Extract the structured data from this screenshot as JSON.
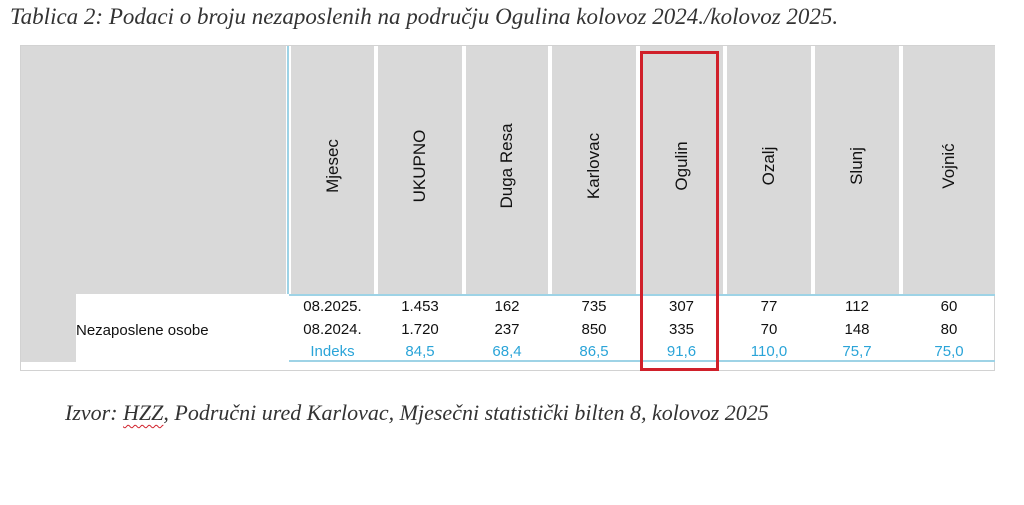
{
  "caption": "Tablica 2: Podaci o broju nezaposlenih na području Ogulina kolovoz 2024./kolovoz 2025.",
  "table": {
    "headers": [
      "Mjesec",
      "UKUPNO",
      "Duga Resa",
      "Karlovac",
      "Ogulin",
      "Ozalj",
      "Slunj",
      "Vojnić"
    ],
    "row_label": "Nezaposlene osobe",
    "rows": [
      [
        "08.2025.",
        "1.453",
        "162",
        "735",
        "307",
        "77",
        "112",
        "60"
      ],
      [
        "08.2024.",
        "1.720",
        "237",
        "850",
        "335",
        "70",
        "148",
        "80"
      ],
      [
        "Indeks",
        "84,5",
        "68,4",
        "86,5",
        "91,6",
        "110,0",
        "75,7",
        "75,0"
      ]
    ],
    "highlighted_column": "Ogulin",
    "highlight_color": "#d0202a",
    "index_color": "#2aa4d8"
  },
  "source": {
    "prefix": "Izvor: ",
    "abbr": "HZZ",
    "rest": ", Područni ured Karlovac, Mjesečni statistički bilten 8, kolovoz 2025"
  }
}
